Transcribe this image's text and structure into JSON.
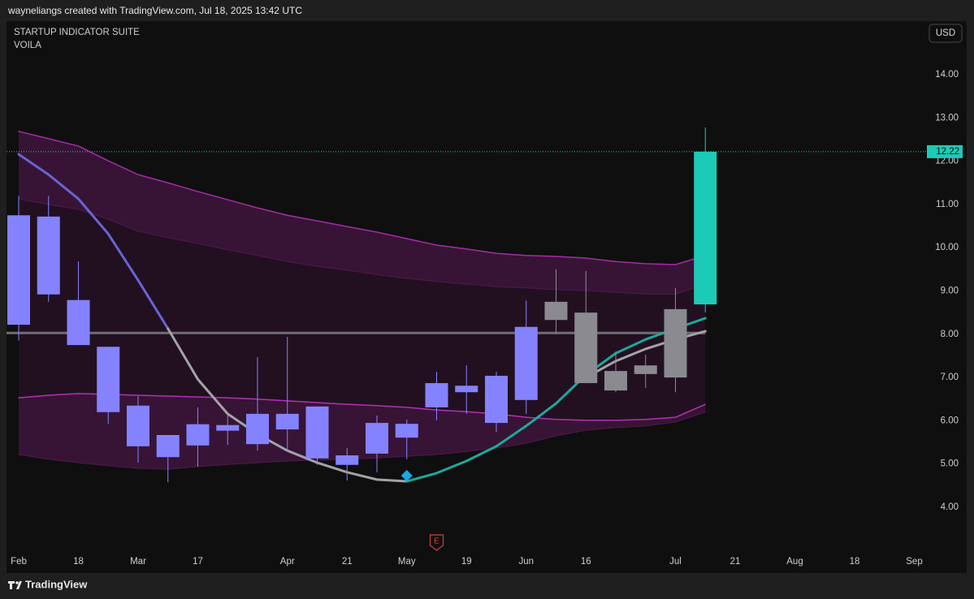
{
  "header": "wayneliangs created with TradingView.com, Jul 18, 2025 13:42 UTC",
  "footer": "TradingView",
  "chart_data": {
    "type": "candlestick",
    "title": "STARTUP INDICATOR SUITE",
    "subtitle": "VOILA",
    "currency": "USD",
    "event_label": "E",
    "categories": [
      "Feb",
      null,
      "18",
      null,
      "Mar",
      null,
      "17",
      null,
      null,
      "Apr",
      null,
      "21",
      null,
      "May",
      null,
      "19",
      null,
      "Jun",
      null,
      "16",
      null,
      null,
      "Jul",
      null,
      "21",
      null,
      "Aug",
      null,
      "18",
      null,
      "Sep"
    ],
    "open": [
      8.22,
      10.72,
      8.79,
      7.71,
      6.35,
      5.67,
      5.43,
      5.77,
      5.46,
      6.16,
      6.33,
      5.2,
      5.24,
      5.61,
      6.31,
      6.66,
      5.95,
      6.48,
      8.33,
      8.5,
      7.15,
      7.08,
      7.0,
      8.69,
      null,
      null,
      null,
      null,
      null,
      null,
      null
    ],
    "high": [
      11.2,
      11.2,
      9.68,
      7.71,
      6.57,
      5.67,
      6.31,
      6.14,
      7.47,
      7.94,
      6.33,
      5.37,
      6.12,
      6.03,
      7.13,
      7.28,
      7.13,
      8.78,
      9.5,
      9.46,
      7.6,
      7.53,
      9.07,
      12.78,
      null,
      null,
      null,
      null,
      null,
      null,
      null
    ],
    "low": [
      7.85,
      8.75,
      7.75,
      5.93,
      5.03,
      4.58,
      4.94,
      5.44,
      5.31,
      5.29,
      4.98,
      4.62,
      4.81,
      5.11,
      6.01,
      6.16,
      5.74,
      6.16,
      8.0,
      6.87,
      6.66,
      6.76,
      6.66,
      8.5,
      null,
      null,
      null,
      null,
      null,
      null,
      null
    ],
    "close": [
      10.75,
      8.92,
      7.75,
      6.2,
      5.41,
      5.16,
      5.92,
      5.9,
      6.16,
      5.8,
      5.13,
      4.98,
      5.95,
      5.93,
      6.87,
      6.81,
      7.04,
      8.17,
      8.75,
      6.87,
      6.7,
      7.28,
      8.58,
      12.22,
      null,
      null,
      null,
      null,
      null,
      null,
      null
    ],
    "candle_colors": [
      "#8582ff",
      "#8582ff",
      "#8582ff",
      "#8582ff",
      "#8582ff",
      "#8582ff",
      "#8582ff",
      "#8582ff",
      "#8582ff",
      "#8582ff",
      "#8582ff",
      "#8582ff",
      "#8582ff",
      "#8582ff",
      "#8582ff",
      "#8582ff",
      "#8582ff",
      "#8582ff",
      "#8a8a90",
      "#8a8a90",
      "#8a8a90",
      "#8a8a90",
      "#8a8a90",
      "#1ccbb7",
      null,
      null,
      null,
      null,
      null,
      null,
      null
    ],
    "overlays": [
      {
        "color": "#a52ca5",
        "width": 1.5,
        "values": [
          12.69,
          12.52,
          12.35,
          12.01,
          11.69,
          11.5,
          11.3,
          11.11,
          10.92,
          10.75,
          10.62,
          10.49,
          10.36,
          10.21,
          10.06,
          9.97,
          9.87,
          9.82,
          9.8,
          9.76,
          9.68,
          9.63,
          9.61,
          9.82,
          null,
          null,
          null,
          null,
          null,
          null,
          null
        ]
      },
      {
        "color": "#4e1a4b",
        "width": 1,
        "values": [
          11.13,
          11.0,
          10.89,
          10.66,
          10.38,
          10.23,
          10.1,
          9.95,
          9.82,
          9.68,
          9.57,
          9.48,
          9.38,
          9.29,
          9.22,
          9.16,
          9.1,
          9.07,
          9.03,
          9.01,
          8.97,
          8.93,
          8.93,
          9.16,
          null,
          null,
          null,
          null,
          null,
          null,
          null
        ]
      },
      {
        "color": "#b231b2",
        "width": 1.5,
        "values": [
          6.53,
          6.59,
          6.63,
          6.61,
          6.59,
          6.57,
          6.55,
          6.53,
          6.5,
          6.46,
          6.42,
          6.38,
          6.35,
          6.31,
          6.25,
          6.21,
          6.16,
          6.08,
          6.03,
          6.01,
          6.01,
          6.03,
          6.08,
          6.38,
          null,
          null,
          null,
          null,
          null,
          null,
          null
        ]
      },
      {
        "color": "#4e1a4b",
        "width": 1,
        "values": [
          5.22,
          5.11,
          5.03,
          4.96,
          4.9,
          4.88,
          4.94,
          4.99,
          5.03,
          5.07,
          5.09,
          5.11,
          5.14,
          5.18,
          5.22,
          5.29,
          5.37,
          5.48,
          5.65,
          5.78,
          5.84,
          5.88,
          5.97,
          6.2,
          null,
          null,
          null,
          null,
          null,
          null,
          null
        ]
      },
      {
        "color": "#6a63d6",
        "width": 3,
        "values": [
          12.16,
          11.69,
          11.13,
          10.32,
          9.25,
          8.13,
          null,
          null,
          null,
          null,
          null,
          null,
          null,
          null,
          null,
          null,
          null,
          null,
          null,
          null,
          null,
          null,
          null,
          null,
          null,
          null,
          null,
          null,
          null,
          null,
          null
        ]
      },
      {
        "color": "#a3a3a6",
        "width": 3,
        "values": [
          null,
          null,
          null,
          null,
          null,
          8.13,
          6.96,
          6.16,
          5.69,
          5.31,
          5.03,
          4.81,
          4.64,
          4.6,
          null,
          null,
          null,
          null,
          null,
          null,
          null,
          null,
          null,
          null,
          null,
          null,
          null,
          null,
          null,
          null,
          null
        ]
      },
      {
        "color": "#1ea89b",
        "width": 3,
        "values": [
          null,
          null,
          null,
          null,
          null,
          null,
          null,
          null,
          null,
          null,
          null,
          null,
          null,
          4.6,
          4.79,
          5.07,
          5.41,
          5.88,
          6.4,
          7.06,
          7.56,
          7.88,
          8.13,
          8.37,
          null,
          null,
          null,
          null,
          null,
          null,
          null
        ]
      },
      {
        "color": "#a3a3a6",
        "width": 3,
        "values": [
          null,
          null,
          null,
          null,
          null,
          null,
          null,
          null,
          null,
          null,
          null,
          null,
          null,
          null,
          null,
          null,
          null,
          null,
          null,
          7.0,
          7.38,
          7.66,
          7.88,
          8.07,
          null,
          null,
          null,
          null,
          null,
          null,
          null
        ]
      }
    ],
    "hline": {
      "value": 8.03,
      "color": "#6e6e72"
    },
    "last_price": 12.22,
    "last_price_color": "#1ccbb7",
    "ylim": [
      3,
      15
    ],
    "yticks": [
      {
        "value": 4,
        "label": "4.00"
      },
      {
        "value": 5,
        "label": "5.00"
      },
      {
        "value": 6,
        "label": "6.00"
      },
      {
        "value": 7,
        "label": "7.00"
      },
      {
        "value": 8,
        "label": "8.00"
      },
      {
        "value": 9,
        "label": "9.00"
      },
      {
        "value": 10,
        "label": "10.00"
      },
      {
        "value": 11,
        "label": "11.00"
      },
      {
        "value": 12,
        "label": "12.00"
      },
      {
        "value": 13,
        "label": "13.00"
      },
      {
        "value": 14,
        "label": "14.00"
      }
    ]
  }
}
